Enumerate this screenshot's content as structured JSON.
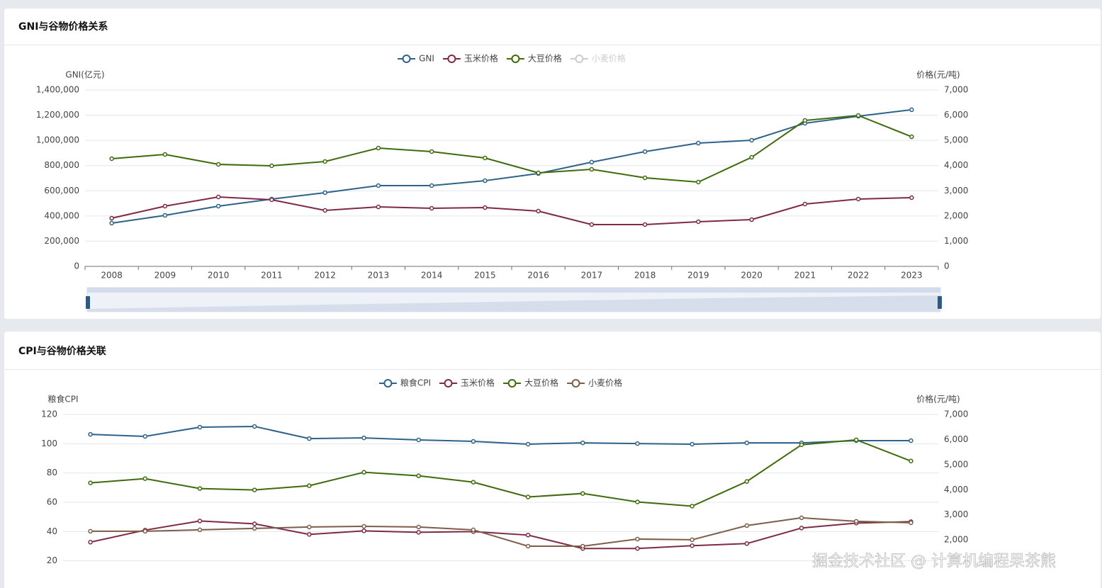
{
  "chart_data": [
    {
      "type": "line",
      "title": "GNI与谷物价格关系",
      "ylabel": "GNI(亿元)",
      "y2label": "价格(元/吨)",
      "categories": [
        "2008",
        "2009",
        "2010",
        "2011",
        "2012",
        "2013",
        "2014",
        "2015",
        "2016",
        "2017",
        "2018",
        "2019",
        "2020",
        "2021",
        "2022",
        "2023"
      ],
      "ylim": [
        0,
        1400000
      ],
      "yticks": [
        0,
        {
          "value": 200000,
          "label": "200,000"
        },
        {
          "value": 400000,
          "label": "400,000"
        },
        {
          "value": 600000,
          "label": "600,000"
        },
        {
          "value": 800000,
          "label": "800,000"
        },
        {
          "value": 1000000,
          "label": "1,000,000"
        },
        {
          "value": 1200000,
          "label": "1,200,000"
        },
        {
          "value": 1400000,
          "label": "1,400,000"
        }
      ],
      "y2lim": [
        0,
        7000
      ],
      "y2ticks": [
        0,
        {
          "value": 1000,
          "label": "1,000"
        },
        {
          "value": 2000,
          "label": "2,000"
        },
        {
          "value": 3000,
          "label": "3,000"
        },
        {
          "value": 4000,
          "label": "4,000"
        },
        {
          "value": 5000,
          "label": "5,000"
        },
        {
          "value": 6000,
          "label": "6,000"
        },
        {
          "value": 7000,
          "label": "7,000"
        }
      ],
      "grid": true,
      "series": [
        {
          "name": "GNI",
          "color": "#2e6288",
          "values": [
            343000,
            405000,
            478000,
            534000,
            585000,
            641000,
            641000,
            680000,
            737000,
            827000,
            911000,
            978000,
            1001000,
            1136000,
            1192000,
            1243000
          ]
        },
        {
          "name": "玉米价格",
          "color": "#7e2a47",
          "axis": "y2",
          "values": [
            1911,
            2390,
            2755,
            2643,
            2221,
            2361,
            2305,
            2333,
            2193,
            1659,
            1659,
            1771,
            1855,
            2474,
            2671,
            2727
          ]
        },
        {
          "name": "大豆价格",
          "color": "#3f6b0c",
          "axis": "y2",
          "values": [
            4273,
            4442,
            4048,
            3992,
            4161,
            4695,
            4554,
            4301,
            3711,
            3851,
            3514,
            3345,
            4329,
            5791,
            5988,
            5144
          ]
        },
        {
          "name": "小麦价格",
          "color": "#cccccc",
          "axis": "y2",
          "hidden": true
        }
      ]
    },
    {
      "type": "line",
      "title": "CPI与谷物价格关联",
      "ylabel": "粮食CPI",
      "y2label": "价格(元/吨)",
      "categories": [
        "2008",
        "2009",
        "2010",
        "2011",
        "2012",
        "2013",
        "2014",
        "2015",
        "2016",
        "2017",
        "2018",
        "2019",
        "2020",
        "2021",
        "2022",
        "2023"
      ],
      "ylim": [
        0,
        120
      ],
      "yticks": [
        20,
        40,
        60,
        80,
        100,
        120
      ],
      "y2lim": [
        0,
        7000
      ],
      "y2ticks": [
        {
          "value": 2000,
          "label": "2,000"
        },
        {
          "value": 3000,
          "label": "3,000"
        },
        {
          "value": 4000,
          "label": "4,000"
        },
        {
          "value": 5000,
          "label": "5,000"
        },
        {
          "value": 6000,
          "label": "6,000"
        },
        {
          "value": 7000,
          "label": "7,000"
        }
      ],
      "grid": true,
      "series": [
        {
          "name": "粮食CPI",
          "color": "#2e6288",
          "values": [
            106.4,
            105.0,
            111.3,
            111.8,
            103.5,
            104.0,
            102.6,
            101.6,
            99.7,
            100.6,
            100.1,
            99.7,
            100.6,
            100.6,
            102.1,
            102.1
          ]
        },
        {
          "name": "玉米价格",
          "color": "#7e2a47",
          "axis": "y2",
          "values": [
            1911,
            2390,
            2755,
            2643,
            2221,
            2361,
            2305,
            2333,
            2193,
            1659,
            1659,
            1771,
            1855,
            2474,
            2671,
            2727
          ]
        },
        {
          "name": "大豆价格",
          "color": "#3f6b0c",
          "axis": "y2",
          "values": [
            4273,
            4442,
            4048,
            3992,
            4161,
            4695,
            4554,
            4301,
            3711,
            3851,
            3514,
            3345,
            4329,
            5791,
            5988,
            5144
          ]
        },
        {
          "name": "小麦价格",
          "color": "#7c5e4b",
          "axis": "y2",
          "values": [
            2345,
            2345,
            2401,
            2458,
            2514,
            2542,
            2514,
            2401,
            1751,
            1751,
            2034,
            2006,
            2571,
            2881,
            2740,
            2684
          ]
        }
      ]
    }
  ],
  "watermark": "掘金技术社区 @ 计算机编程果茶熊"
}
